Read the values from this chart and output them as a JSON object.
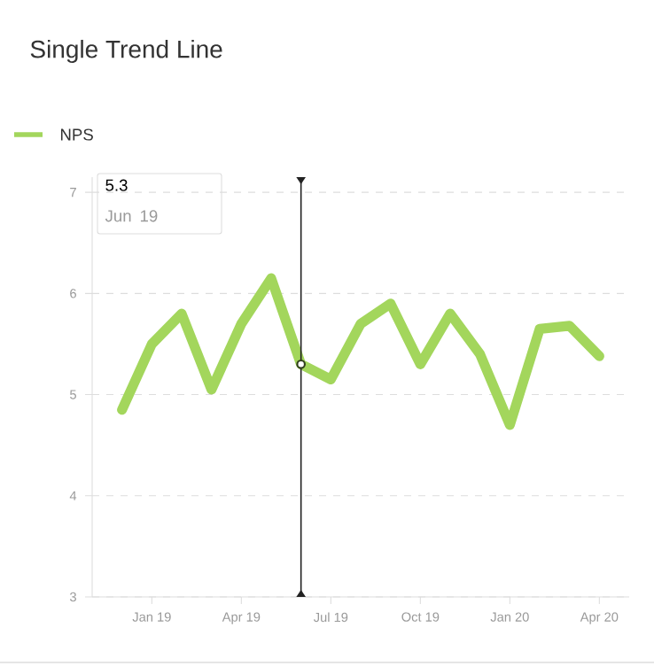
{
  "chart_data": {
    "type": "line",
    "title": "Single Trend Line",
    "x": [
      "2018-12",
      "2019-01",
      "2019-02",
      "2019-03",
      "2019-04",
      "2019-05",
      "2019-06",
      "2019-07",
      "2019-08",
      "2019-09",
      "2019-10",
      "2019-11",
      "2019-12",
      "2020-01",
      "2020-02",
      "2020-03",
      "2020-04"
    ],
    "series": [
      {
        "name": "NPS",
        "color": "#a3d65c",
        "values": [
          4.85,
          5.5,
          5.8,
          5.05,
          5.7,
          6.15,
          5.3,
          5.15,
          5.7,
          5.9,
          5.3,
          5.8,
          5.4,
          4.7,
          5.65,
          5.68,
          5.38
        ]
      }
    ],
    "xlim": [
      "2018-11",
      "2020-05"
    ],
    "xticks": [
      {
        "value": "2019-01",
        "label": "Jan 19"
      },
      {
        "value": "2019-04",
        "label": "Apr 19"
      },
      {
        "value": "2019-07",
        "label": "Jul 19"
      },
      {
        "value": "2019-10",
        "label": "Oct 19"
      },
      {
        "value": "2020-01",
        "label": "Jan 20"
      },
      {
        "value": "2020-04",
        "label": "Apr 20"
      }
    ],
    "ylim": [
      3,
      7.15
    ],
    "yticks": [
      3,
      4,
      5,
      6,
      7
    ],
    "grid": "y",
    "legend": "top left",
    "marker": "none",
    "line_style": "solid",
    "ref_lines": [
      {
        "axis": "x",
        "value": "2019-06",
        "color": "#222222"
      }
    ],
    "annotations": [
      "5.3",
      "Jun 19"
    ]
  }
}
